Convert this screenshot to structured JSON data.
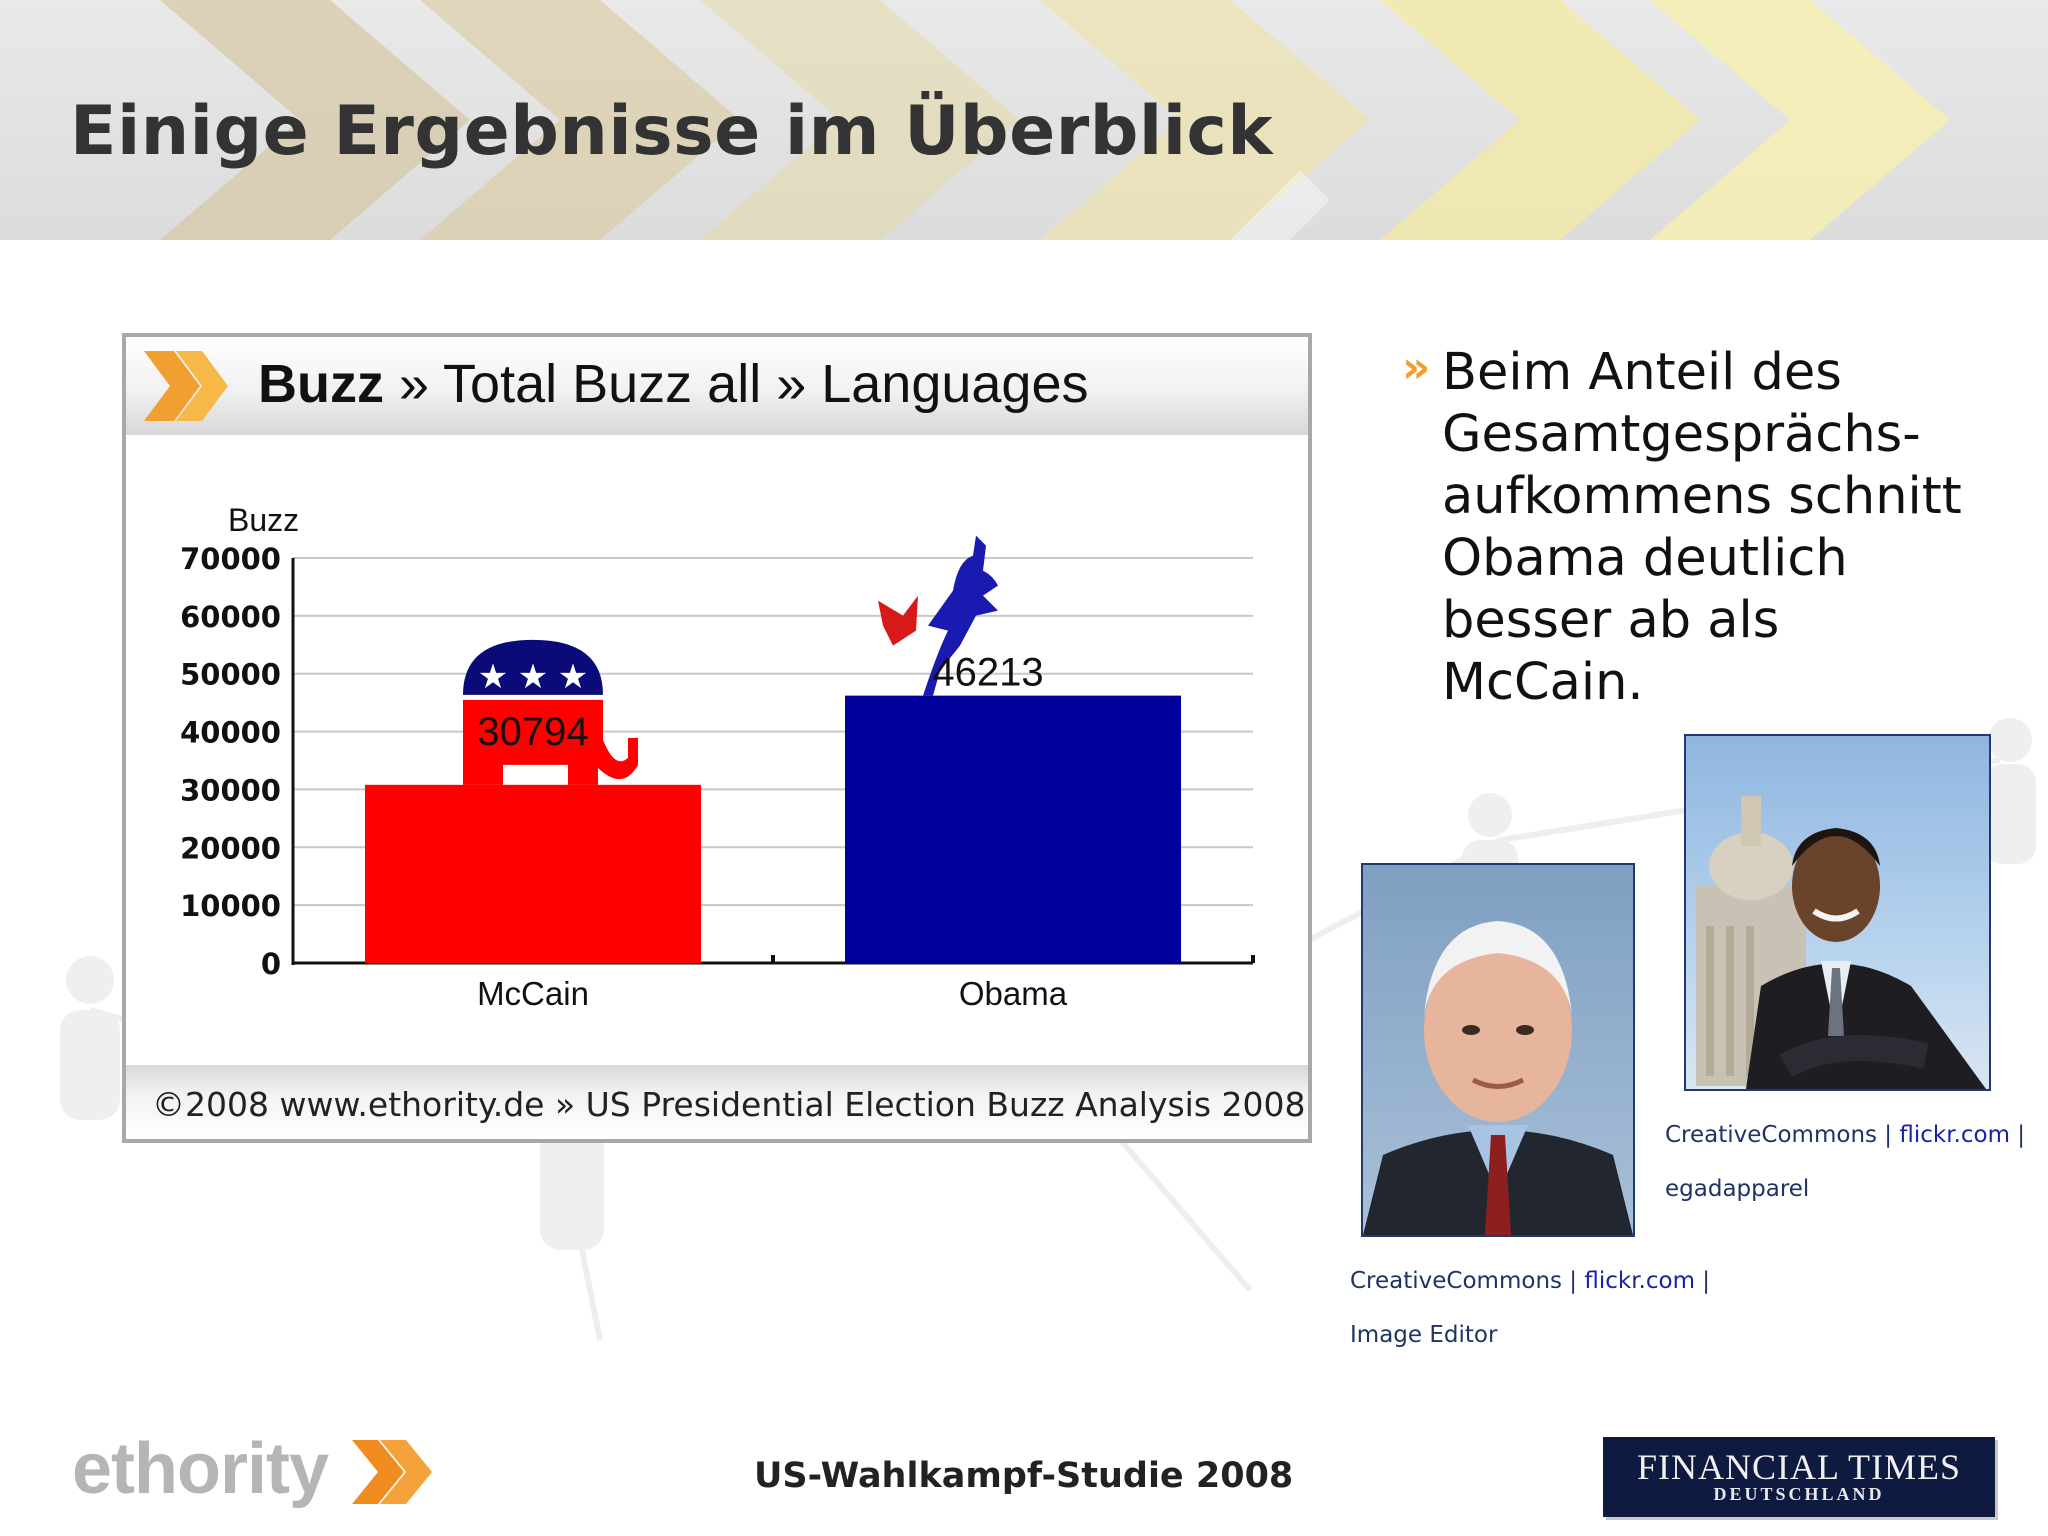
{
  "slide": {
    "title": "Einige Ergebnisse im Überblick",
    "footer_title": "US-Wahlkampf-Studie 2008"
  },
  "chart_panel": {
    "heading_bold": "Buzz",
    "heading_rest": " » Total Buzz all » Languages",
    "footer": "©2008 www.ethority.de  »  US Presidential Election Buzz Analysis 2008"
  },
  "chart_data": {
    "type": "bar",
    "ylabel": "Buzz",
    "categories": [
      "McCain",
      "Obama"
    ],
    "values": [
      30794,
      46213
    ],
    "data_labels": [
      "30794",
      "46213"
    ],
    "colors": [
      "#ff0000",
      "#00009c"
    ],
    "ylim": [
      0,
      70000
    ],
    "yticks": [
      "0",
      "10000",
      "20000",
      "30000",
      "40000",
      "50000",
      "60000",
      "70000"
    ],
    "grid": true
  },
  "bullet": {
    "marker": "»",
    "text": "Beim Anteil des Gesamtgesprächs-aufkommens schnitt Obama deutlich besser ab als McCain."
  },
  "credits": {
    "obama": {
      "source": "CreativeCommons",
      "sep1": " | ",
      "link": "flickr.com",
      "sep2": " |",
      "author": "egadapparel"
    },
    "mccain": {
      "source": "CreativeCommons",
      "sep1": " | ",
      "link": "flickr.com",
      "sep2": " |",
      "author": "Image Editor"
    }
  },
  "logos": {
    "ethority": "ethority",
    "ft_top": "FINANCIAL TIMES",
    "ft_bottom": "DEUTSCHLAND"
  },
  "colors": {
    "accent_orange": "#f0a030",
    "republican_red": "#ff0000",
    "democrat_blue": "#00009c",
    "navy": "#1f3464"
  }
}
